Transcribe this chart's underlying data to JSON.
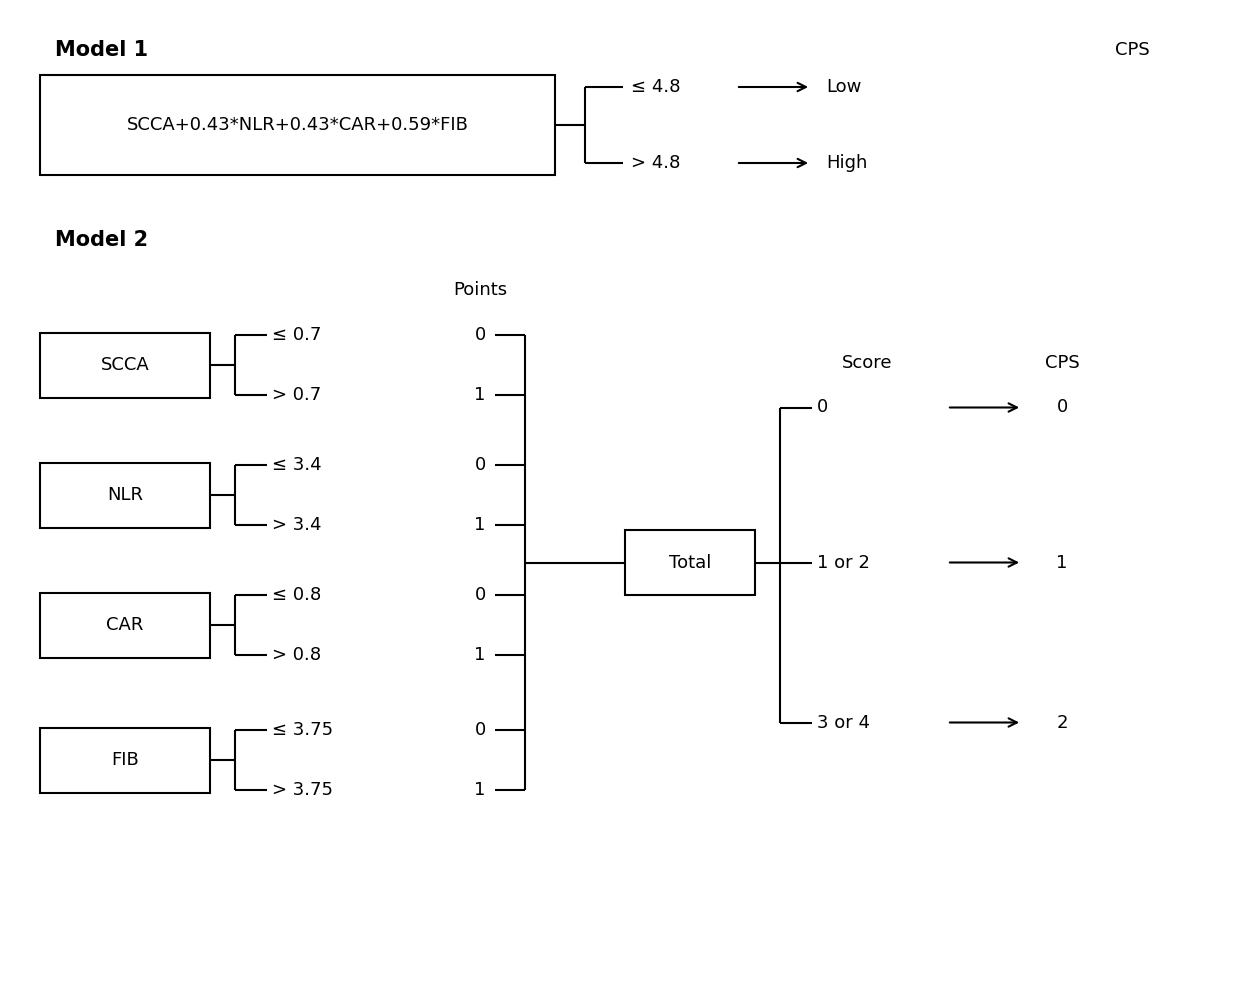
{
  "background_color": "#ffffff",
  "fig_width": 12.4,
  "fig_height": 9.94,
  "model1_label": "Model 1",
  "model1_formula_box": "SCCA+0.43*NLR+0.43*CAR+0.59*FIB",
  "model1_cps_label": "CPS",
  "model1_branch_upper_label": "≤ 4.8",
  "model1_branch_lower_label": "> 4.8",
  "model1_result_upper": "Low",
  "model1_result_lower": "High",
  "model2_label": "Model 2",
  "model2_points_label": "Points",
  "model2_score_label": "Score",
  "model2_cps_label": "CPS",
  "vars": [
    "SCCA",
    "NLR",
    "CAR",
    "FIB"
  ],
  "thresholds_upper": [
    "≤ 0.7",
    "≤ 3.4",
    "≤ 0.8",
    "≤ 3.75"
  ],
  "thresholds_lower": [
    "> 0.7",
    "> 3.4",
    "> 0.8",
    "> 3.75"
  ],
  "points_upper": [
    "0",
    "0",
    "0",
    "0"
  ],
  "points_lower": [
    "1",
    "1",
    "1",
    "1"
  ],
  "total_box_label": "Total",
  "score_branches": [
    "0",
    "1 or 2",
    "3 or 4"
  ],
  "cps_branches": [
    "0",
    "1",
    "2"
  ],
  "font_size_title": 15,
  "font_size_label": 13,
  "font_size_box": 13,
  "font_size_branch": 13,
  "line_color": "#000000",
  "box_edge_color": "#000000",
  "box_face_color": "#ffffff"
}
